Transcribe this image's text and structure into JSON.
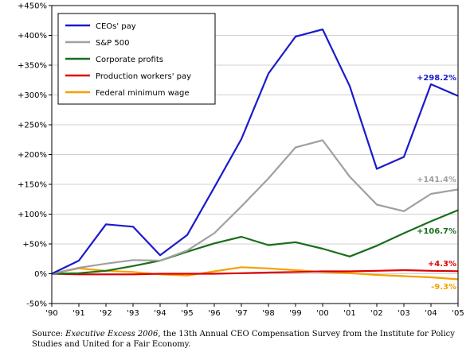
{
  "chart_data": {
    "type": "line",
    "title": "",
    "xlabel": "",
    "ylabel": "",
    "x": [
      "'90",
      "'91",
      "'92",
      "'93",
      "'94",
      "'95",
      "'96",
      "'97",
      "'98",
      "'99",
      "'00",
      "'01",
      "'02",
      "'03",
      "'04",
      "'05"
    ],
    "ylim": [
      -50,
      450
    ],
    "yticks": [
      -50,
      0,
      50,
      100,
      150,
      200,
      250,
      300,
      350,
      400,
      450
    ],
    "ytick_labels": [
      "-50%",
      "0%",
      "+50%",
      "+100%",
      "+150%",
      "+200%",
      "+250%",
      "+300%",
      "+350%",
      "+400%",
      "+450%"
    ],
    "grid": "horizontal",
    "legend_position": "top-left",
    "series": [
      {
        "name": "CEOs' pay",
        "color": "#1a1acc",
        "values": [
          0,
          22,
          83,
          79,
          31,
          65,
          145,
          226,
          336,
          398,
          410,
          315,
          176,
          196,
          318,
          298.2
        ],
        "end_label": "+298.2%"
      },
      {
        "name": "S&P 500",
        "color": "#a0a0a0",
        "values": [
          0,
          10,
          17,
          23,
          22,
          39,
          68,
          113,
          160,
          212,
          224,
          163,
          116,
          105,
          134,
          141.4
        ],
        "end_label": "+141.4%"
      },
      {
        "name": "Corporate profits",
        "color": "#1a6e1a",
        "values": [
          0,
          1,
          5,
          13,
          22,
          37,
          51,
          62,
          48,
          53,
          42,
          29,
          47,
          68,
          88,
          106.7
        ],
        "end_label": "+106.7%"
      },
      {
        "name": "Production workers' pay",
        "color": "#dd0000",
        "values": [
          0,
          -1,
          -1,
          -1,
          0,
          0,
          0,
          1,
          2,
          3,
          4,
          4,
          5,
          6,
          5,
          4.3
        ],
        "end_label": "+4.3%"
      },
      {
        "name": "Federal minimum wage",
        "color": "#f4a000",
        "values": [
          0,
          9,
          5,
          3,
          -1,
          -3,
          4,
          11,
          9,
          6,
          3,
          1,
          -2,
          -4,
          -6,
          -9.3
        ],
        "end_label": "-9.3%"
      }
    ]
  },
  "source": {
    "prefix": "Source: ",
    "title": "Executive Excess 2006",
    "rest": ", the 13th Annual CEO Compensation Survey from the Institute for Policy Studies and United for a Fair Economy."
  }
}
